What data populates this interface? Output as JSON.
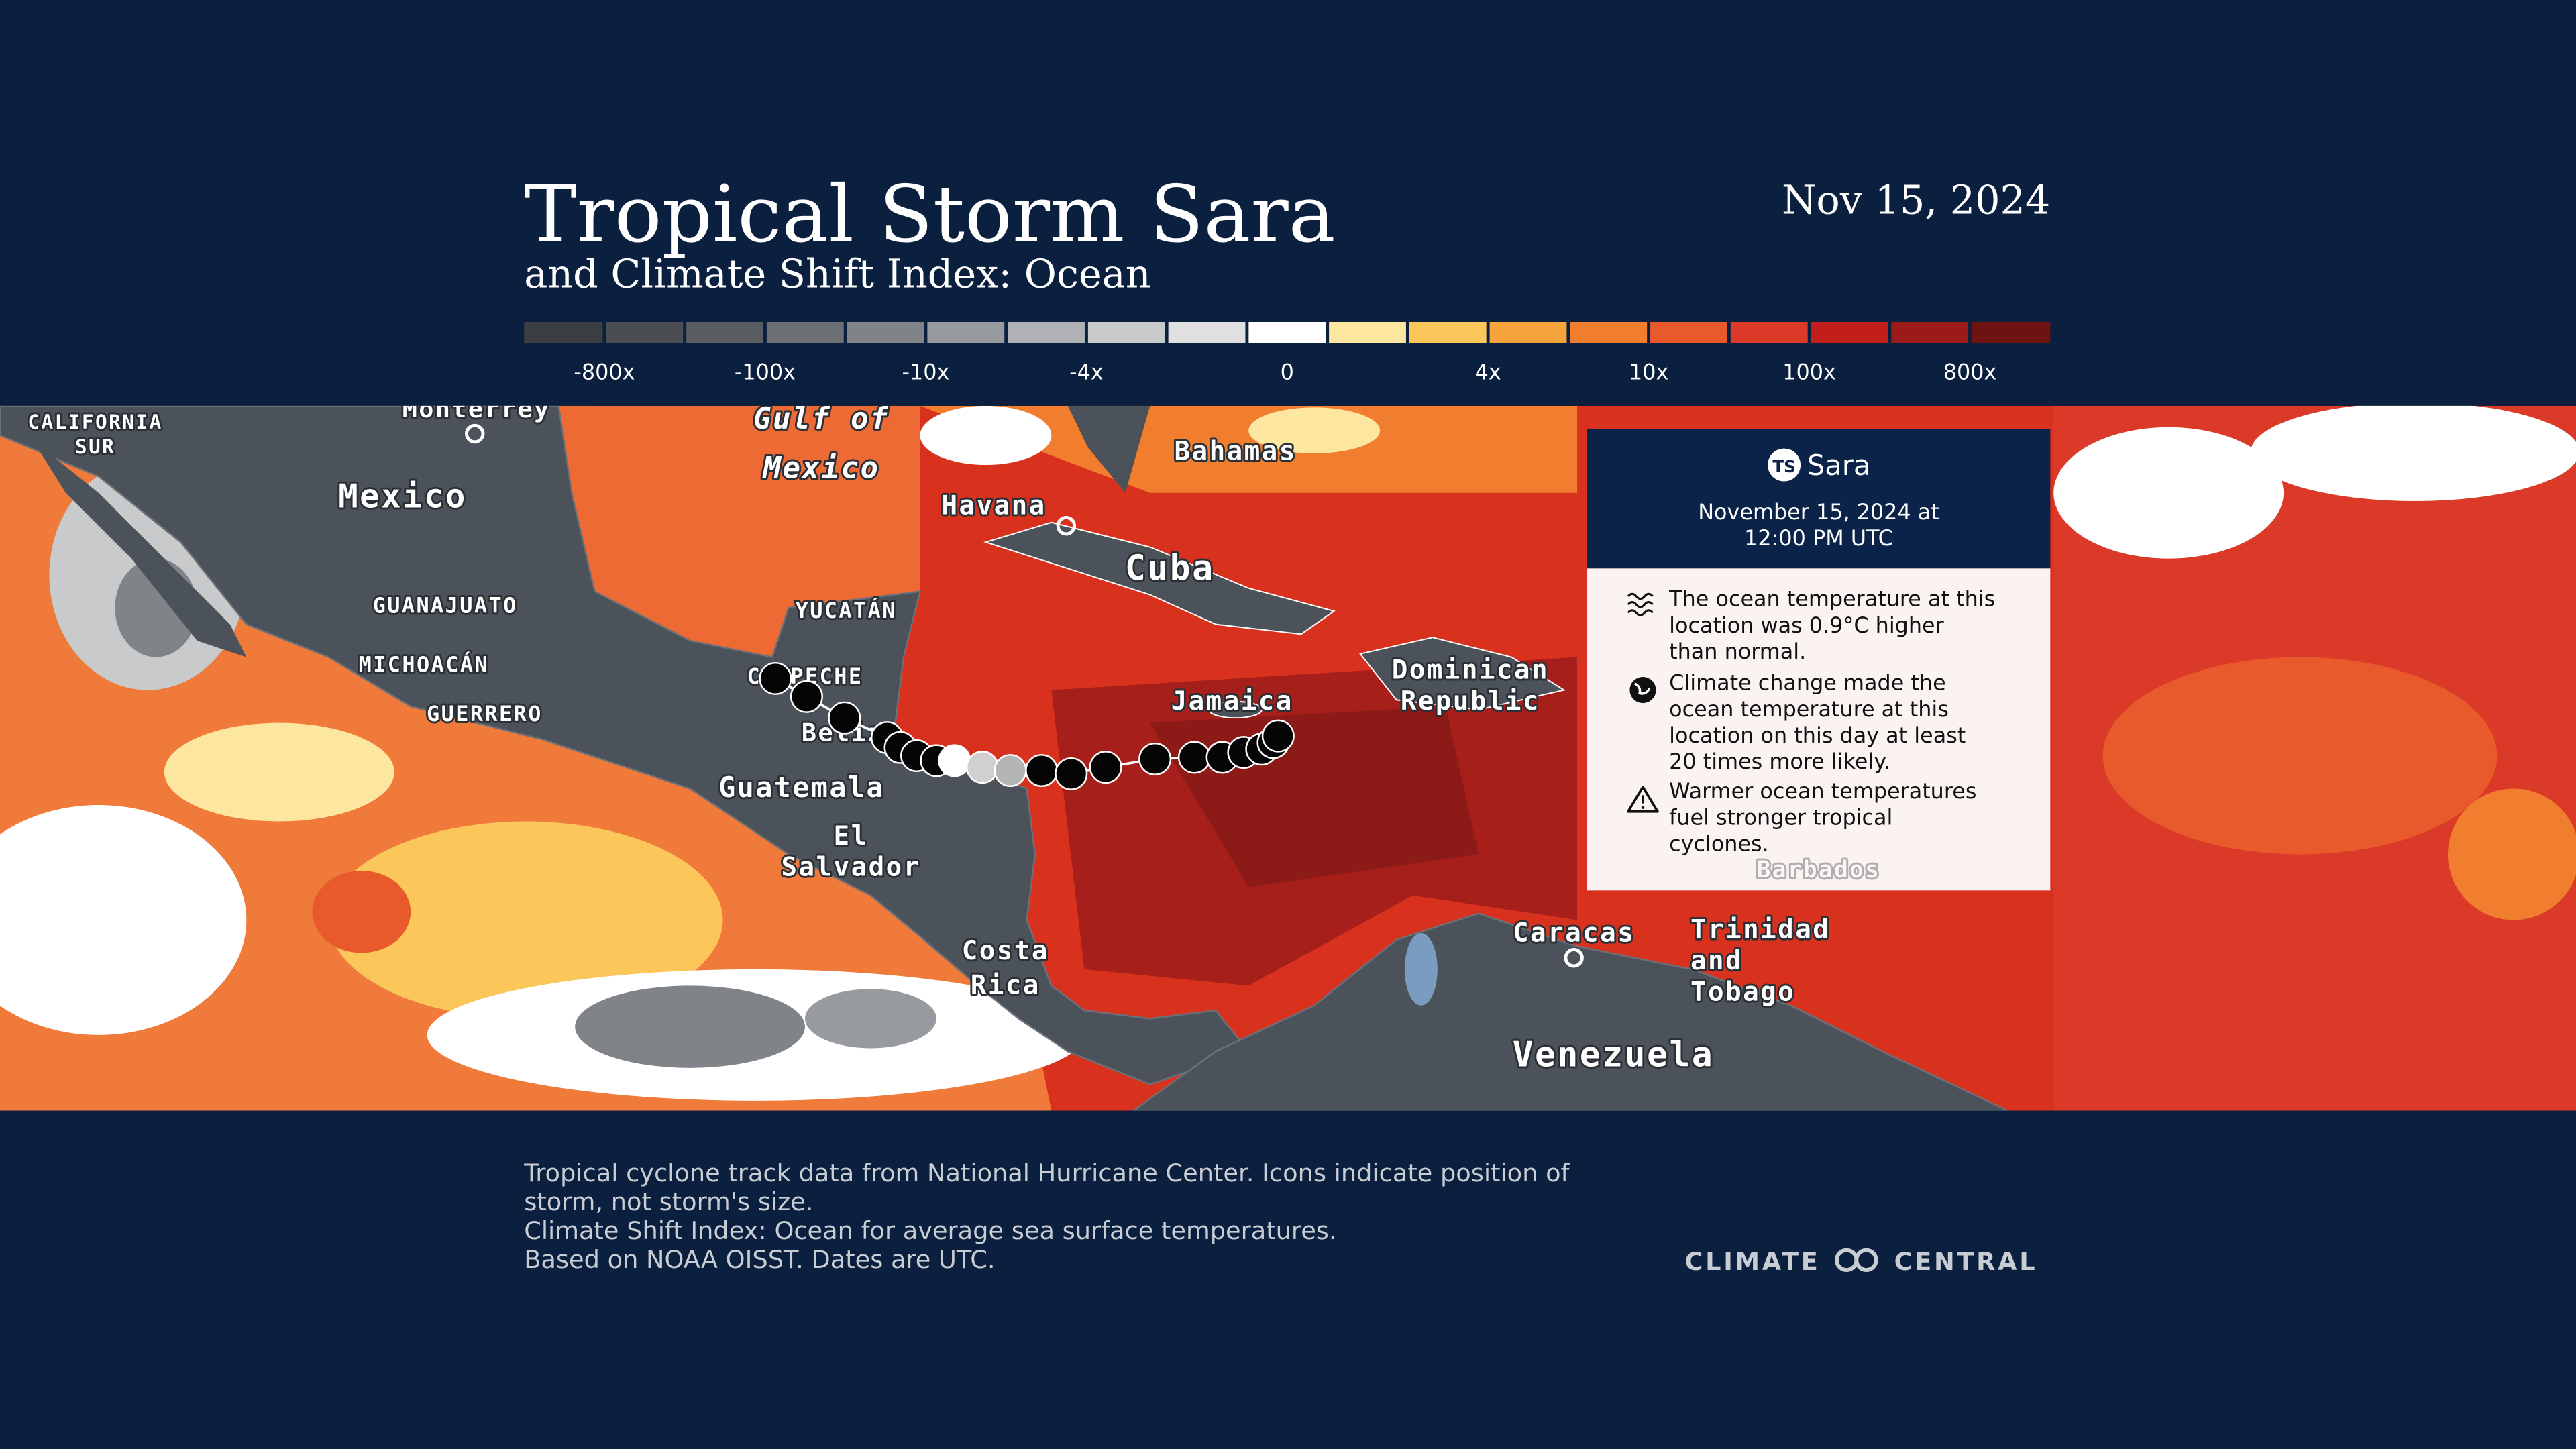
{
  "header": {
    "title": "Tropical Storm Sara",
    "subtitle": "and Climate Shift Index: Ocean",
    "date": "Nov 15, 2024"
  },
  "legend": {
    "colors": [
      "#3a3d42",
      "#4a4d52",
      "#5a5d62",
      "#6c6f74",
      "#808388",
      "#979a9e",
      "#b0b2b5",
      "#c9cacc",
      "#e0e0e1",
      "#ffffff",
      "#fde6a0",
      "#fbc65a",
      "#f7a33c",
      "#f07e2e",
      "#e85a2c",
      "#dc3a28",
      "#c21f1a",
      "#9c1a17",
      "#6f1312"
    ],
    "labels": [
      "-800x",
      "-100x",
      "-10x",
      "-4x",
      "0",
      "4x",
      "10x",
      "100x",
      "800x"
    ]
  },
  "map": {
    "labels": [
      [
        "CALIFORNIA",
        "SUR"
      ],
      [
        "Monterrey"
      ],
      [
        "Mexico"
      ],
      [
        "Gulf of",
        "Mexico"
      ],
      [
        "Havana"
      ],
      [
        "Bahamas"
      ],
      [
        "Cuba"
      ],
      [
        "YUCATÁN"
      ],
      [
        "GUANAJUATO"
      ],
      [
        "MICHOACÁN"
      ],
      [
        "GUERRERO"
      ],
      [
        "CAMPECHE"
      ],
      [
        "Belize"
      ],
      [
        "Guatemala"
      ],
      [
        "El",
        "Salvador"
      ],
      [
        "Costa",
        "Rica"
      ],
      [
        "Jamaica"
      ],
      [
        "Dominican",
        "Republic"
      ],
      [
        "Caracas"
      ],
      [
        "Trinidad",
        "and",
        "Tobago"
      ],
      [
        "Venezuela"
      ],
      [
        "Barbados"
      ]
    ]
  },
  "tooltip": {
    "badge": "TS",
    "name": "Sara",
    "datetime": [
      "November 15, 2024 at",
      "12:00 PM UTC"
    ],
    "items": [
      [
        "The ocean temperature at this",
        "location was 0.9°C higher",
        "than normal."
      ],
      [
        "Climate change made the",
        "ocean temperature at this",
        "location on this day at least",
        "20 times more likely."
      ],
      [
        "Warmer ocean temperatures",
        "fuel stronger tropical",
        "cyclones."
      ]
    ]
  },
  "footer": {
    "notes": [
      "Tropical cyclone track data from National Hurricane Center. Icons indicate position of",
      "storm, not storm's size.",
      "Climate Shift Index: Ocean for average sea surface temperatures.",
      "Based on NOAA OISST. Dates are UTC."
    ],
    "logo": [
      "CLIMATE",
      "CENTRAL"
    ]
  }
}
